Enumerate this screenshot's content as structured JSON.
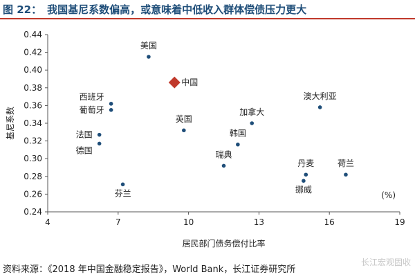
{
  "header": {
    "figure_number": "图 22：",
    "title": "我国基尼系数偏高，或意味着中低收入群体偿债压力更大"
  },
  "footer": {
    "source": "资料来源：《2018 年中国金融稳定报告》，World Bank，长江证券研究所",
    "watermark": "长江宏观固收"
  },
  "chart_data": {
    "type": "scatter",
    "title": "",
    "xlabel": "居民部门债务偿付比率",
    "ylabel": "基尼系数",
    "x_unit": "(%)",
    "xlim": [
      4,
      19
    ],
    "ylim": [
      0.24,
      0.44
    ],
    "x_ticks": [
      4,
      7,
      10,
      13,
      16,
      19
    ],
    "y_ticks": [
      0.24,
      0.26,
      0.28,
      0.3,
      0.32,
      0.34,
      0.36,
      0.38,
      0.4,
      0.42,
      0.44
    ],
    "grid": false,
    "colors": {
      "point": "#1f4e79",
      "highlight": "#c0392b"
    },
    "points": [
      {
        "label": "美国",
        "x": 8.3,
        "y": 0.415,
        "label_pos": "above"
      },
      {
        "label": "中国",
        "x": 9.4,
        "y": 0.386,
        "label_pos": "right",
        "highlight": true
      },
      {
        "label": "西班牙",
        "x": 6.7,
        "y": 0.362,
        "label_pos": "upper-left"
      },
      {
        "label": "葡萄牙",
        "x": 6.7,
        "y": 0.355,
        "label_pos": "left"
      },
      {
        "label": "法国",
        "x": 6.2,
        "y": 0.327,
        "label_pos": "left"
      },
      {
        "label": "德国",
        "x": 6.2,
        "y": 0.317,
        "label_pos": "lower-left"
      },
      {
        "label": "芬兰",
        "x": 7.2,
        "y": 0.271,
        "label_pos": "below"
      },
      {
        "label": "英国",
        "x": 9.8,
        "y": 0.332,
        "label_pos": "above"
      },
      {
        "label": "韩国",
        "x": 12.1,
        "y": 0.316,
        "label_pos": "above"
      },
      {
        "label": "加拿大",
        "x": 12.7,
        "y": 0.34,
        "label_pos": "above"
      },
      {
        "label": "瑞典",
        "x": 11.5,
        "y": 0.292,
        "label_pos": "above"
      },
      {
        "label": "澳大利亚",
        "x": 15.6,
        "y": 0.358,
        "label_pos": "above"
      },
      {
        "label": "丹麦",
        "x": 15.0,
        "y": 0.282,
        "label_pos": "above"
      },
      {
        "label": "挪威",
        "x": 14.9,
        "y": 0.275,
        "label_pos": "below"
      },
      {
        "label": "荷兰",
        "x": 16.7,
        "y": 0.282,
        "label_pos": "above"
      }
    ]
  }
}
